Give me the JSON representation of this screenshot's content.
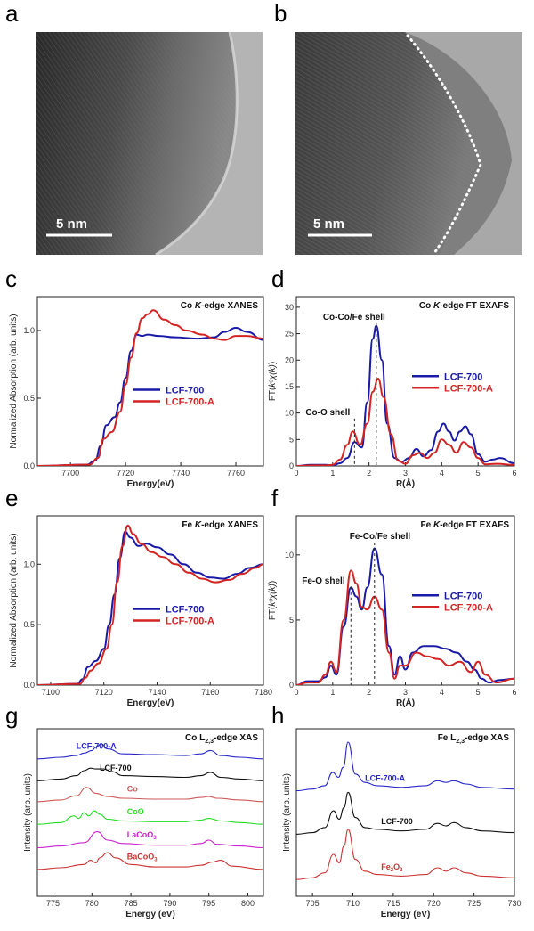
{
  "panels": {
    "a": {
      "label": "a",
      "scale": "5 nm"
    },
    "b": {
      "label": "b",
      "scale": "5 nm"
    }
  },
  "chart_data": [
    {
      "id": "c",
      "label": "c",
      "type": "line",
      "title": "Co K-edge XANES",
      "title_pre": "Co ",
      "title_it": "K",
      "title_post": "-edge XANES",
      "xlabel": "Energy(eV)",
      "ylabel": "Normalized Absorption (arb. units)",
      "xlim": [
        7688,
        7770
      ],
      "ylim": [
        0,
        1.25
      ],
      "xticks": [
        7700,
        7720,
        7740,
        7760
      ],
      "yticks": [
        0.0,
        0.5,
        1.0
      ],
      "legend": "center-right",
      "series": [
        {
          "name": "LCF-700",
          "color": "#1a1aa8",
          "x": [
            7688,
            7706,
            7709,
            7711,
            7713,
            7716,
            7718,
            7720,
            7722,
            7724,
            7726,
            7728,
            7732,
            7738,
            7746,
            7752,
            7756,
            7760,
            7764,
            7770
          ],
          "y": [
            0,
            0.01,
            0.04,
            0.15,
            0.3,
            0.36,
            0.47,
            0.65,
            0.85,
            0.97,
            0.96,
            0.97,
            0.96,
            0.95,
            0.94,
            0.95,
            0.99,
            1.02,
            0.99,
            0.93
          ]
        },
        {
          "name": "LCF-700-A",
          "color": "#d42424",
          "x": [
            7688,
            7707,
            7710,
            7712,
            7715,
            7718,
            7720,
            7722,
            7724,
            7726,
            7728,
            7730,
            7734,
            7738,
            7742,
            7748,
            7752,
            7756,
            7760,
            7764,
            7770
          ],
          "y": [
            0,
            0.01,
            0.06,
            0.2,
            0.25,
            0.4,
            0.6,
            0.8,
            0.98,
            1.09,
            1.12,
            1.15,
            1.08,
            1.04,
            1.0,
            0.97,
            0.94,
            0.93,
            0.96,
            0.96,
            0.94
          ]
        }
      ]
    },
    {
      "id": "d",
      "label": "d",
      "type": "line",
      "title": "Co K-edge  FT EXAFS",
      "title_pre": "Co ",
      "title_it": "K",
      "title_post": "-edge  FT EXAFS",
      "xlabel": "R(Å)",
      "ylabel": "FT(k³χ(k))",
      "ylabel_pre": "FT(",
      "ylabel_it": "k³χ(k)",
      "ylabel_post": ")",
      "xlim": [
        0,
        6
      ],
      "ylim": [
        0,
        32
      ],
      "xticks": [
        0,
        1,
        2,
        3,
        4,
        5,
        6
      ],
      "yticks": [
        0,
        5,
        10,
        15,
        20,
        25,
        30
      ],
      "legend": "right",
      "annotations": [
        {
          "text": "Co-Co/Fe shell",
          "x": 2.2
        },
        {
          "text": "Co-O shell",
          "x": 1.6
        }
      ],
      "series": [
        {
          "name": "LCF-700",
          "color": "#1a1aa8",
          "x": [
            0,
            0.4,
            0.8,
            1.0,
            1.2,
            1.4,
            1.6,
            1.8,
            1.95,
            2.1,
            2.2,
            2.35,
            2.5,
            2.7,
            2.9,
            3.1,
            3.3,
            3.5,
            3.7,
            3.9,
            4.05,
            4.2,
            4.35,
            4.5,
            4.65,
            4.8,
            5.0,
            5.2,
            5.4,
            5.6,
            6.0
          ],
          "y": [
            0,
            0.2,
            0.2,
            0.1,
            0.5,
            1.5,
            4.5,
            3.5,
            12,
            24,
            26.5,
            20,
            8,
            1.5,
            0.8,
            1.5,
            3.2,
            1.8,
            3,
            6.5,
            8,
            6.5,
            4.8,
            6.5,
            7.5,
            6,
            2.2,
            0.8,
            1.2,
            1.5,
            0.5
          ]
        },
        {
          "name": "LCF-700-A",
          "color": "#d42424",
          "x": [
            0,
            0.4,
            0.8,
            1.0,
            1.2,
            1.4,
            1.55,
            1.75,
            1.95,
            2.1,
            2.25,
            2.4,
            2.6,
            2.8,
            3.0,
            3.2,
            3.4,
            3.6,
            3.8,
            4.0,
            4.2,
            4.4,
            4.6,
            4.8,
            5.0,
            5.2,
            5.5,
            6.0
          ],
          "y": [
            0,
            0.1,
            0.1,
            0.2,
            1.2,
            4,
            6.5,
            4,
            8,
            14,
            16.5,
            13,
            6,
            1,
            0.4,
            2,
            2.5,
            1.5,
            2.5,
            5,
            4,
            2.5,
            4.5,
            3.5,
            1.5,
            0.3,
            0.4,
            0.2
          ]
        }
      ]
    },
    {
      "id": "e",
      "label": "e",
      "type": "line",
      "title": "Fe K-edge XANES",
      "title_pre": "Fe ",
      "title_it": "K",
      "title_post": "-edge XANES",
      "xlabel": "Energy(eV)",
      "ylabel": "Normalized Absorption (arb. units)",
      "xlim": [
        7095,
        7180
      ],
      "ylim": [
        0,
        1.4
      ],
      "xticks": [
        7100,
        7120,
        7140,
        7160,
        7180
      ],
      "yticks": [
        0.0,
        0.5,
        1.0
      ],
      "legend": "center-right",
      "series": [
        {
          "name": "LCF-700",
          "color": "#1a1aa8",
          "x": [
            7095,
            7110,
            7112,
            7114,
            7117,
            7120,
            7122,
            7124,
            7126,
            7128,
            7130,
            7133,
            7136,
            7140,
            7145,
            7150,
            7155,
            7160,
            7165,
            7170,
            7175,
            7180
          ],
          "y": [
            0,
            0.01,
            0.05,
            0.15,
            0.2,
            0.3,
            0.5,
            0.75,
            1.05,
            1.27,
            1.22,
            1.15,
            1.17,
            1.14,
            1.08,
            1.0,
            0.93,
            0.89,
            0.88,
            0.92,
            0.97,
            1.0
          ]
        },
        {
          "name": "LCF-700-A",
          "color": "#d42424",
          "x": [
            7095,
            7111,
            7113,
            7115,
            7118,
            7121,
            7123,
            7125,
            7127,
            7129,
            7131,
            7134,
            7138,
            7142,
            7147,
            7152,
            7157,
            7162,
            7167,
            7172,
            7177,
            7180
          ],
          "y": [
            0,
            0.01,
            0.06,
            0.12,
            0.18,
            0.3,
            0.5,
            0.85,
            1.15,
            1.32,
            1.25,
            1.17,
            1.1,
            1.06,
            1.0,
            0.93,
            0.88,
            0.85,
            0.87,
            0.92,
            0.97,
            1.0
          ]
        }
      ]
    },
    {
      "id": "f",
      "label": "f",
      "type": "line",
      "title": "Fe K-edge FT EXAFS",
      "title_pre": "Fe ",
      "title_it": "K",
      "title_post": "-edge FT EXAFS",
      "xlabel": "R(Å)",
      "ylabel": "FT(k³χ(k))",
      "ylabel_pre": "FT(",
      "ylabel_it": "k³χ(k)",
      "ylabel_post": ")",
      "xlim": [
        0,
        6
      ],
      "ylim": [
        0,
        13
      ],
      "xticks": [
        0,
        1,
        2,
        3,
        4,
        5,
        6
      ],
      "yticks": [
        0,
        5,
        10
      ],
      "legend": "right",
      "annotations": [
        {
          "text": "Fe-Co/Fe shell",
          "x": 2.15
        },
        {
          "text": "Fe-O shell",
          "x": 1.5
        }
      ],
      "series": [
        {
          "name": "LCF-700",
          "color": "#1a1aa8",
          "x": [
            0,
            0.3,
            0.6,
            0.8,
            0.95,
            1.1,
            1.3,
            1.5,
            1.65,
            1.8,
            1.95,
            2.15,
            2.35,
            2.55,
            2.7,
            2.85,
            3.0,
            3.2,
            3.5,
            3.8,
            4.1,
            4.4,
            4.7,
            4.9,
            5.1,
            5.3,
            5.6,
            6.0
          ],
          "y": [
            0,
            0.3,
            0.3,
            0.6,
            1.5,
            0.8,
            4.5,
            7.5,
            6.8,
            5.8,
            7.5,
            10.5,
            8.5,
            3,
            0.8,
            2.2,
            1.2,
            2.5,
            3,
            3,
            2.8,
            2.5,
            1.8,
            1.2,
            0.5,
            0.2,
            0.4,
            0.5
          ]
        },
        {
          "name": "LCF-700-A",
          "color": "#d42424",
          "x": [
            0,
            0.3,
            0.6,
            0.8,
            0.95,
            1.1,
            1.3,
            1.5,
            1.65,
            1.8,
            1.95,
            2.15,
            2.35,
            2.55,
            2.7,
            2.85,
            3.0,
            3.3,
            3.6,
            3.9,
            4.2,
            4.5,
            4.8,
            5.0,
            5.2,
            5.5,
            6.0
          ],
          "y": [
            0,
            0.2,
            0.2,
            0.8,
            1.8,
            1.0,
            5,
            8.8,
            7.8,
            6,
            5.8,
            6.8,
            5.8,
            2.5,
            0.5,
            1.5,
            1.5,
            2.5,
            2.2,
            2.0,
            1.5,
            1.8,
            1.0,
            1.8,
            0.8,
            0.2,
            0.5
          ]
        }
      ]
    },
    {
      "id": "g",
      "label": "g",
      "type": "line",
      "title": "Co L2,3-edge XAS",
      "title_pre": "Co L",
      "title_sub": "2,3",
      "title_post": "-edge XAS",
      "xlabel": "Energy (eV)",
      "ylabel": "Intensity (arb. units)",
      "xlim": [
        773,
        802
      ],
      "ylim": [
        0,
        1
      ],
      "xticks": [
        775,
        780,
        785,
        790,
        795,
        800
      ],
      "stacked": true,
      "series": [
        {
          "name": "LCF-700-A",
          "label_pre": "LCF-700-A",
          "color": "#2a2ac8",
          "label_x": 778,
          "baseline": 0.82,
          "x": [
            773,
            776,
            778,
            779,
            780,
            780.5,
            781.2,
            782,
            784,
            788,
            792,
            794,
            795.2,
            796.5,
            799,
            802
          ],
          "y": [
            0,
            0.01,
            0.02,
            0.035,
            0.05,
            0.07,
            0.09,
            0.06,
            0.03,
            0.025,
            0.02,
            0.03,
            0.05,
            0.02,
            0.01,
            0.0
          ]
        },
        {
          "name": "LCF-700",
          "label_pre": "LCF-700",
          "color": "#111111",
          "label_x": 781,
          "baseline": 0.69,
          "x": [
            773,
            776,
            778,
            779,
            779.8,
            780.5,
            781.5,
            782.5,
            784,
            788,
            792,
            794,
            795.2,
            796.5,
            799,
            802
          ],
          "y": [
            0,
            0.01,
            0.03,
            0.06,
            0.075,
            0.07,
            0.07,
            0.055,
            0.03,
            0.025,
            0.02,
            0.03,
            0.05,
            0.02,
            0.01,
            0.0
          ]
        },
        {
          "name": "Co",
          "label_pre": "Co",
          "color": "#cc5a5a",
          "label_x": 784.5,
          "baseline": 0.565,
          "x": [
            773,
            776,
            778,
            779.3,
            780.5,
            782,
            784,
            788,
            792,
            794,
            795,
            796,
            799,
            802
          ],
          "y": [
            0,
            0.01,
            0.035,
            0.085,
            0.05,
            0.03,
            0.02,
            0.015,
            0.015,
            0.025,
            0.03,
            0.02,
            0.01,
            0.0
          ]
        },
        {
          "name": "CoO",
          "label_pre": "CoO",
          "color": "#22dd22",
          "label_x": 784.5,
          "baseline": 0.43,
          "x": [
            773,
            776,
            777.7,
            778.3,
            779,
            779.6,
            780.3,
            781,
            782,
            784,
            788,
            792,
            794,
            795,
            796.5,
            799,
            802
          ],
          "y": [
            0,
            0.01,
            0.05,
            0.035,
            0.07,
            0.05,
            0.08,
            0.06,
            0.03,
            0.02,
            0.015,
            0.015,
            0.025,
            0.035,
            0.02,
            0.01,
            0.0
          ]
        },
        {
          "name": "LaCoO3",
          "label_pre": "LaCoO",
          "label_sub": "3",
          "color": "#cc22cc",
          "label_x": 784.5,
          "baseline": 0.29,
          "x": [
            773,
            776,
            779,
            780.7,
            782,
            784,
            788,
            792,
            794,
            795,
            796,
            799,
            802
          ],
          "y": [
            0,
            0.01,
            0.03,
            0.095,
            0.045,
            0.025,
            0.015,
            0.015,
            0.025,
            0.045,
            0.02,
            0.01,
            0.0
          ]
        },
        {
          "name": "BaCoO3",
          "label_pre": "BaCoO",
          "label_sub": "3",
          "color": "#cc3333",
          "label_x": 784.5,
          "baseline": 0.16,
          "x": [
            773,
            776,
            779,
            779.8,
            780.5,
            781,
            782,
            783,
            785,
            788,
            792,
            794,
            795.5,
            796.5,
            798,
            802
          ],
          "y": [
            0,
            0.01,
            0.03,
            0.055,
            0.04,
            0.07,
            0.1,
            0.07,
            0.03,
            0.015,
            0.015,
            0.025,
            0.045,
            0.055,
            0.02,
            0.0
          ]
        }
      ]
    },
    {
      "id": "h",
      "label": "h",
      "type": "line",
      "title": "Fe L2,3-edge XAS",
      "title_pre": "Fe L",
      "title_sub": "2,3",
      "title_post": "-edge XAS",
      "xlabel": "Energy (eV)",
      "ylabel": "Intensity (arb. units)",
      "xlim": [
        703,
        730
      ],
      "ylim": [
        0,
        1
      ],
      "xticks": [
        705,
        710,
        715,
        720,
        725,
        730
      ],
      "stacked": true,
      "series": [
        {
          "name": "LCF-700-A",
          "label_pre": "LCF-700-A",
          "color": "#2a2ac8",
          "label_x": 711.5,
          "baseline": 0.63,
          "x": [
            703,
            705,
            706.5,
            707.5,
            708.2,
            708.8,
            709.4,
            710.3,
            711.5,
            713,
            716,
            719,
            720.5,
            721.5,
            722.5,
            724,
            726,
            730
          ],
          "y": [
            0,
            0.01,
            0.03,
            0.11,
            0.08,
            0.14,
            0.29,
            0.1,
            0.05,
            0.03,
            0.02,
            0.03,
            0.06,
            0.05,
            0.06,
            0.04,
            0.02,
            0.01
          ]
        },
        {
          "name": "LCF-700",
          "label_pre": "LCF-700",
          "color": "#111111",
          "label_x": 713.5,
          "baseline": 0.37,
          "x": [
            703,
            705,
            706.5,
            707.6,
            708.3,
            708.9,
            709.4,
            710.3,
            711.5,
            713,
            716,
            719,
            720.5,
            721.5,
            722.5,
            724,
            726,
            730
          ],
          "y": [
            0,
            0.01,
            0.04,
            0.14,
            0.09,
            0.16,
            0.25,
            0.1,
            0.04,
            0.03,
            0.02,
            0.03,
            0.065,
            0.05,
            0.07,
            0.04,
            0.02,
            0.01
          ]
        },
        {
          "name": "Fe2O3",
          "label_pre": "Fe",
          "label_sub": "2",
          "label_post": "O",
          "label_sub2": "3",
          "color": "#cc3333",
          "label_x": 713.5,
          "baseline": 0.1,
          "x": [
            703,
            705,
            706.5,
            707.6,
            708.3,
            708.9,
            709.4,
            710.3,
            711.5,
            713,
            716,
            719,
            720.5,
            721.5,
            722.5,
            724,
            726,
            730
          ],
          "y": [
            0,
            0.01,
            0.04,
            0.15,
            0.1,
            0.2,
            0.3,
            0.12,
            0.05,
            0.03,
            0.02,
            0.03,
            0.07,
            0.05,
            0.07,
            0.04,
            0.02,
            0.01
          ]
        }
      ]
    }
  ]
}
